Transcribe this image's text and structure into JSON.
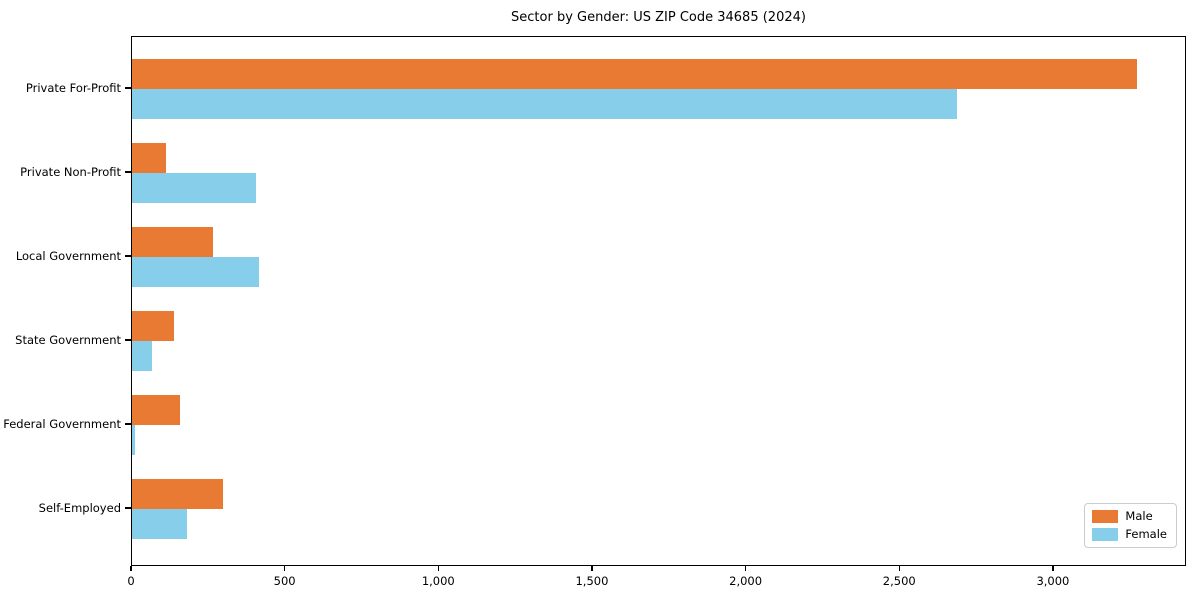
{
  "title": "Sector by Gender: US ZIP Code 34685 (2024)",
  "chart_data": {
    "type": "bar",
    "orientation": "horizontal",
    "title": "Sector by Gender: US ZIP Code 34685 (2024)",
    "categories": [
      "Private For-Profit",
      "Private Non-Profit",
      "Local Government",
      "State Government",
      "Federal Government",
      "Self-Employed"
    ],
    "series": [
      {
        "name": "Male",
        "color": "#e87a33",
        "values": [
          3270,
          110,
          262,
          136,
          155,
          295
        ]
      },
      {
        "name": "Female",
        "color": "#87ceeb",
        "values": [
          2685,
          402,
          413,
          65,
          10,
          178
        ]
      }
    ],
    "xlabel": "",
    "ylabel": "",
    "xlim": [
      0,
      3433
    ],
    "x_tick_values": [
      0,
      500,
      1000,
      1500,
      2000,
      2500,
      3000
    ],
    "x_tick_labels": [
      "0",
      "500",
      "1,000",
      "1,500",
      "2,000",
      "2,500",
      "3,000"
    ],
    "grid": false,
    "legend_position": "lower right",
    "background_color": "#ffffff",
    "spine_color": "#000000"
  }
}
